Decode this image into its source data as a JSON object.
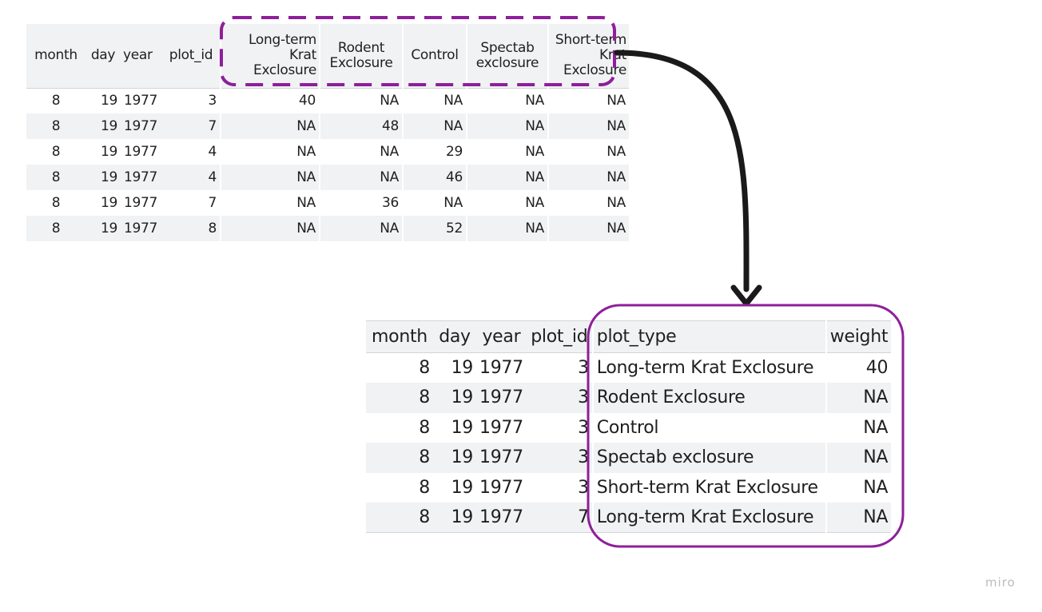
{
  "wide_table": {
    "headers": [
      "month",
      "day",
      "year",
      "plot_id",
      "Long-term Krat Exclosure",
      "Rodent Exclosure",
      "Control",
      "Spectab exclosure",
      "Short-term Krat Exclosure"
    ],
    "rows": [
      [
        "8",
        "19",
        "1977",
        "3",
        "40",
        "NA",
        "NA",
        "NA",
        "NA"
      ],
      [
        "8",
        "19",
        "1977",
        "7",
        "NA",
        "48",
        "NA",
        "NA",
        "NA"
      ],
      [
        "8",
        "19",
        "1977",
        "4",
        "NA",
        "NA",
        "29",
        "NA",
        "NA"
      ],
      [
        "8",
        "19",
        "1977",
        "4",
        "NA",
        "NA",
        "46",
        "NA",
        "NA"
      ],
      [
        "8",
        "19",
        "1977",
        "7",
        "NA",
        "36",
        "NA",
        "NA",
        "NA"
      ],
      [
        "8",
        "19",
        "1977",
        "8",
        "NA",
        "NA",
        "52",
        "NA",
        "NA"
      ]
    ]
  },
  "long_table": {
    "headers": [
      "month",
      "day",
      "year",
      "plot_id",
      "plot_type",
      "weight"
    ],
    "rows": [
      [
        "8",
        "19",
        "1977",
        "3",
        "Long-term Krat Exclosure",
        "40"
      ],
      [
        "8",
        "19",
        "1977",
        "3",
        "Rodent Exclosure",
        "NA"
      ],
      [
        "8",
        "19",
        "1977",
        "3",
        "Control",
        "NA"
      ],
      [
        "8",
        "19",
        "1977",
        "3",
        "Spectab exclosure",
        "NA"
      ],
      [
        "8",
        "19",
        "1977",
        "3",
        "Short-term Krat Exclosure",
        "NA"
      ],
      [
        "8",
        "19",
        "1977",
        "7",
        "Long-term Krat Exclosure",
        "NA"
      ]
    ]
  },
  "highlight_color": "#8e1f9a",
  "arrow_color": "#1a1a1a",
  "watermark": "miro"
}
